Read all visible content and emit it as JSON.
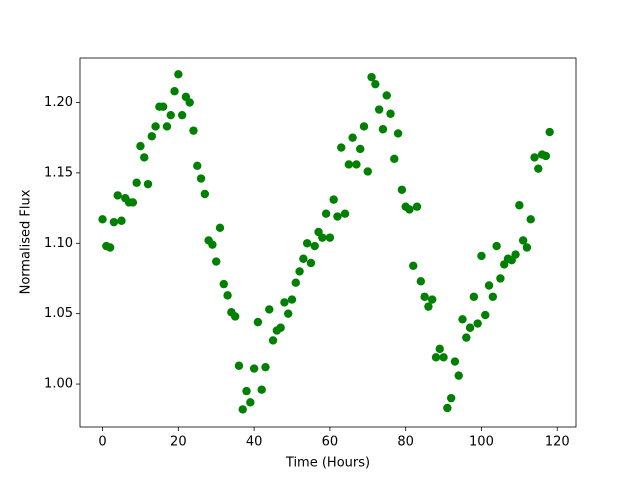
{
  "chart_data": {
    "type": "scatter",
    "x_label": "Time (Hours)",
    "y_label": "Normalised Flux",
    "color": "#008000",
    "x": [
      0,
      1,
      2,
      3,
      4,
      5,
      6,
      7,
      8,
      9,
      10,
      11,
      12,
      13,
      14,
      15,
      16,
      17,
      18,
      19,
      20,
      21,
      22,
      23,
      24,
      25,
      26,
      27,
      28,
      29,
      30,
      31,
      32,
      33,
      34,
      35,
      36,
      37,
      38,
      39,
      40,
      41,
      42,
      43,
      44,
      45,
      46,
      47,
      48,
      49,
      50,
      51,
      52,
      53,
      54,
      55,
      56,
      57,
      58,
      59,
      60,
      61,
      62,
      63,
      64,
      65,
      66,
      67,
      68,
      69,
      70,
      71,
      72,
      73,
      74,
      75,
      76,
      77,
      78,
      79,
      80,
      81,
      82,
      83,
      84,
      85,
      86,
      87,
      88,
      89,
      90,
      91,
      92,
      93,
      94,
      95,
      96,
      97,
      98,
      99,
      100,
      101,
      102,
      103,
      104,
      105,
      106,
      107,
      108,
      109,
      110,
      111,
      112,
      113,
      114,
      115,
      116,
      117,
      118
    ],
    "values": [
      1.117,
      1.098,
      1.097,
      1.115,
      1.134,
      1.116,
      1.132,
      1.129,
      1.129,
      1.143,
      1.169,
      1.161,
      1.142,
      1.176,
      1.183,
      1.197,
      1.197,
      1.183,
      1.191,
      1.208,
      1.22,
      1.191,
      1.204,
      1.2,
      1.18,
      1.155,
      1.146,
      1.135,
      1.102,
      1.099,
      1.087,
      1.111,
      1.071,
      1.063,
      1.051,
      1.048,
      1.013,
      0.982,
      0.995,
      0.987,
      1.011,
      1.044,
      0.996,
      1.012,
      1.053,
      1.031,
      1.038,
      1.04,
      1.058,
      1.05,
      1.06,
      1.072,
      1.08,
      1.089,
      1.1,
      1.086,
      1.098,
      1.108,
      1.104,
      1.121,
      1.104,
      1.131,
      1.119,
      1.168,
      1.121,
      1.156,
      1.175,
      1.156,
      1.167,
      1.183,
      1.151,
      1.218,
      1.213,
      1.195,
      1.181,
      1.205,
      1.192,
      1.16,
      1.178,
      1.138,
      1.126,
      1.124,
      1.084,
      1.126,
      1.073,
      1.062,
      1.055,
      1.06,
      1.019,
      1.025,
      1.019,
      0.983,
      0.99,
      1.016,
      1.006,
      1.046,
      1.033,
      1.04,
      1.062,
      1.043,
      1.091,
      1.049,
      1.07,
      1.062,
      1.098,
      1.075,
      1.085,
      1.089,
      1.088,
      1.092,
      1.127,
      1.102,
      1.097,
      1.117,
      1.161,
      1.153,
      1.163,
      1.162,
      1.179
    ],
    "xlim": [
      -5.95,
      124.95
    ],
    "ylim": [
      0.9695,
      1.2316
    ],
    "xticks": [
      0,
      20,
      40,
      60,
      80,
      100,
      120
    ],
    "yticks": [
      {
        "value": 1.0,
        "label": "1.00"
      },
      {
        "value": 1.05,
        "label": "1.05"
      },
      {
        "value": 1.1,
        "label": "1.10"
      },
      {
        "value": 1.15,
        "label": "1.15"
      },
      {
        "value": 1.2,
        "label": "1.20"
      }
    ]
  }
}
